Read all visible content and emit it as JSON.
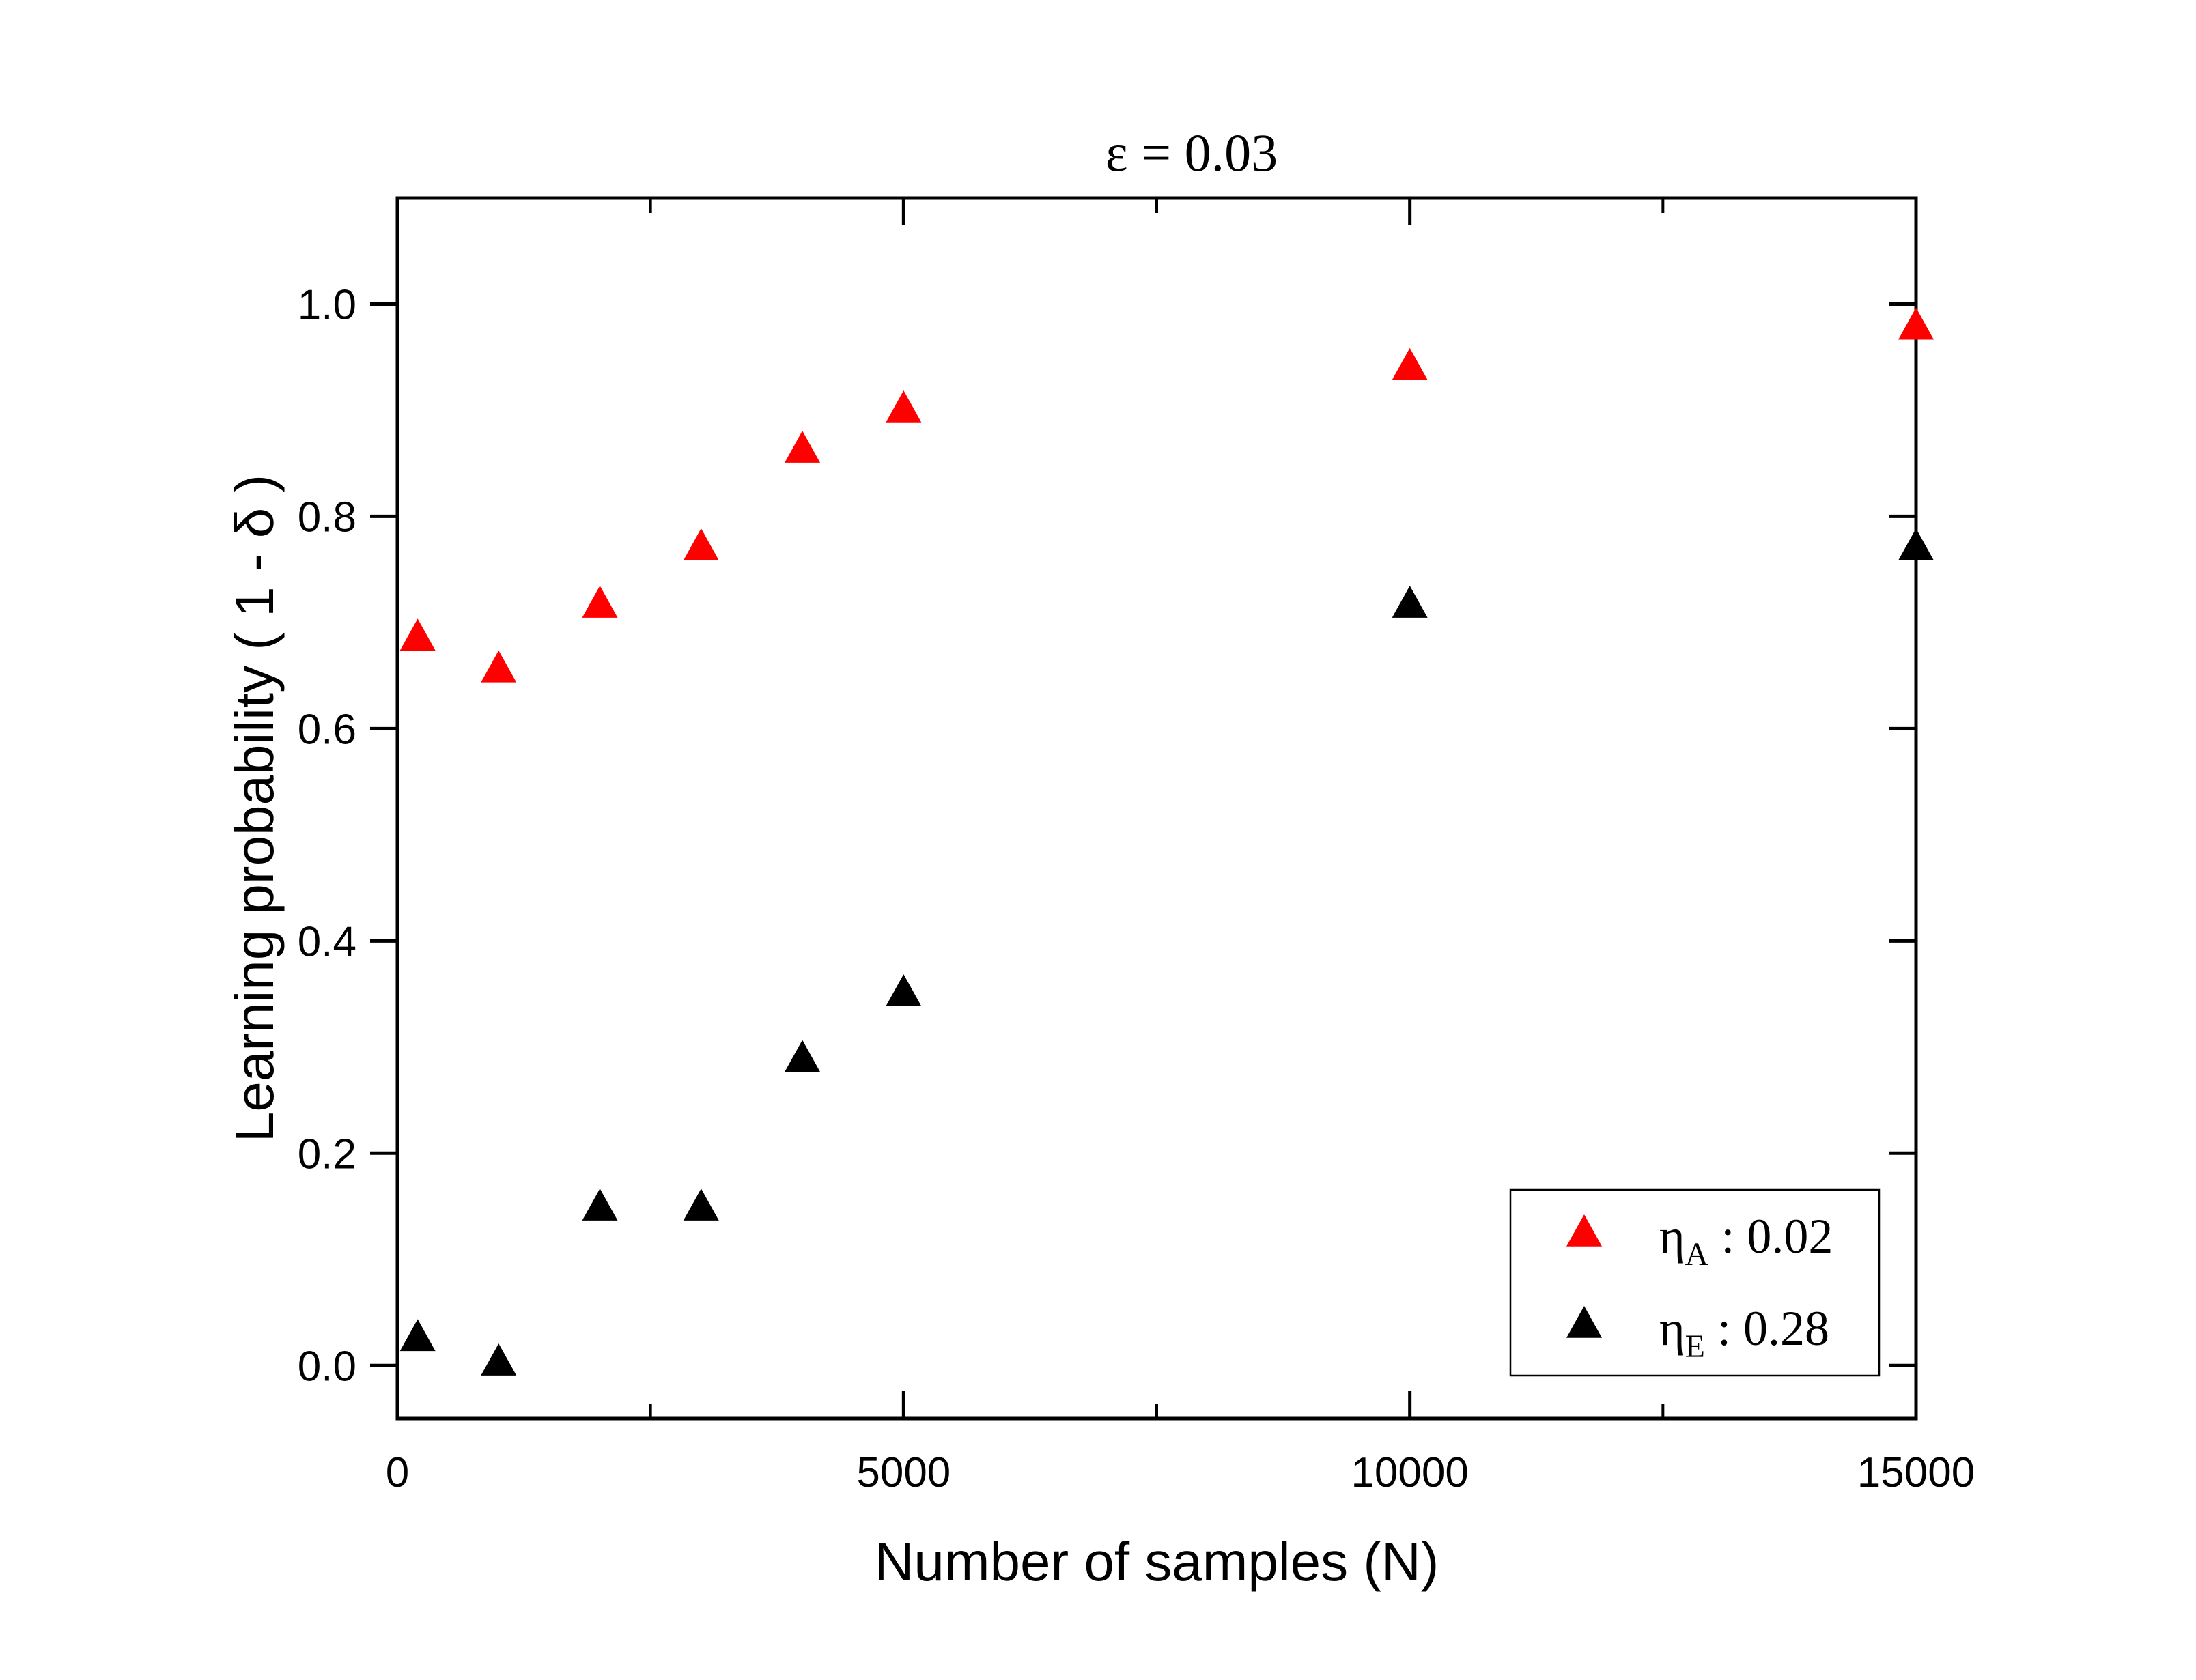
{
  "chart_data": {
    "type": "scatter",
    "title_main": "ε = 0.03",
    "xlabel": "Number of samples (N)",
    "ylabel": "Learning probability ( 1 - δ )",
    "xlim": [
      0,
      15000
    ],
    "ylim": [
      -0.05,
      1.1
    ],
    "xticks": [
      0,
      5000,
      10000,
      15000
    ],
    "yticks": [
      0.0,
      0.2,
      0.4,
      0.6,
      0.8,
      1.0
    ],
    "x_tick_labels": [
      "0",
      "5000",
      "10000",
      "15000"
    ],
    "y_tick_labels": [
      "0.0",
      "0.2",
      "0.4",
      "0.6",
      "0.8",
      "1.0"
    ],
    "grid": false,
    "legend_position": "bottom-right",
    "series": [
      {
        "symbol": "η",
        "subscript": "A",
        "value_text": " : 0.02",
        "color": "#ff0000",
        "marker": "triangle",
        "x": [
          200,
          1000,
          2000,
          3000,
          4000,
          5000,
          10000,
          15000
        ],
        "y": [
          0.685,
          0.655,
          0.716,
          0.77,
          0.862,
          0.9,
          0.94,
          0.978
        ]
      },
      {
        "symbol": "η",
        "subscript": "E",
        "value_text": " : 0.28",
        "color": "#000000",
        "marker": "triangle",
        "x": [
          200,
          1000,
          2000,
          3000,
          4000,
          5000,
          10000,
          15000
        ],
        "y": [
          0.025,
          0.002,
          0.148,
          0.148,
          0.288,
          0.35,
          0.716,
          0.77
        ]
      }
    ]
  }
}
